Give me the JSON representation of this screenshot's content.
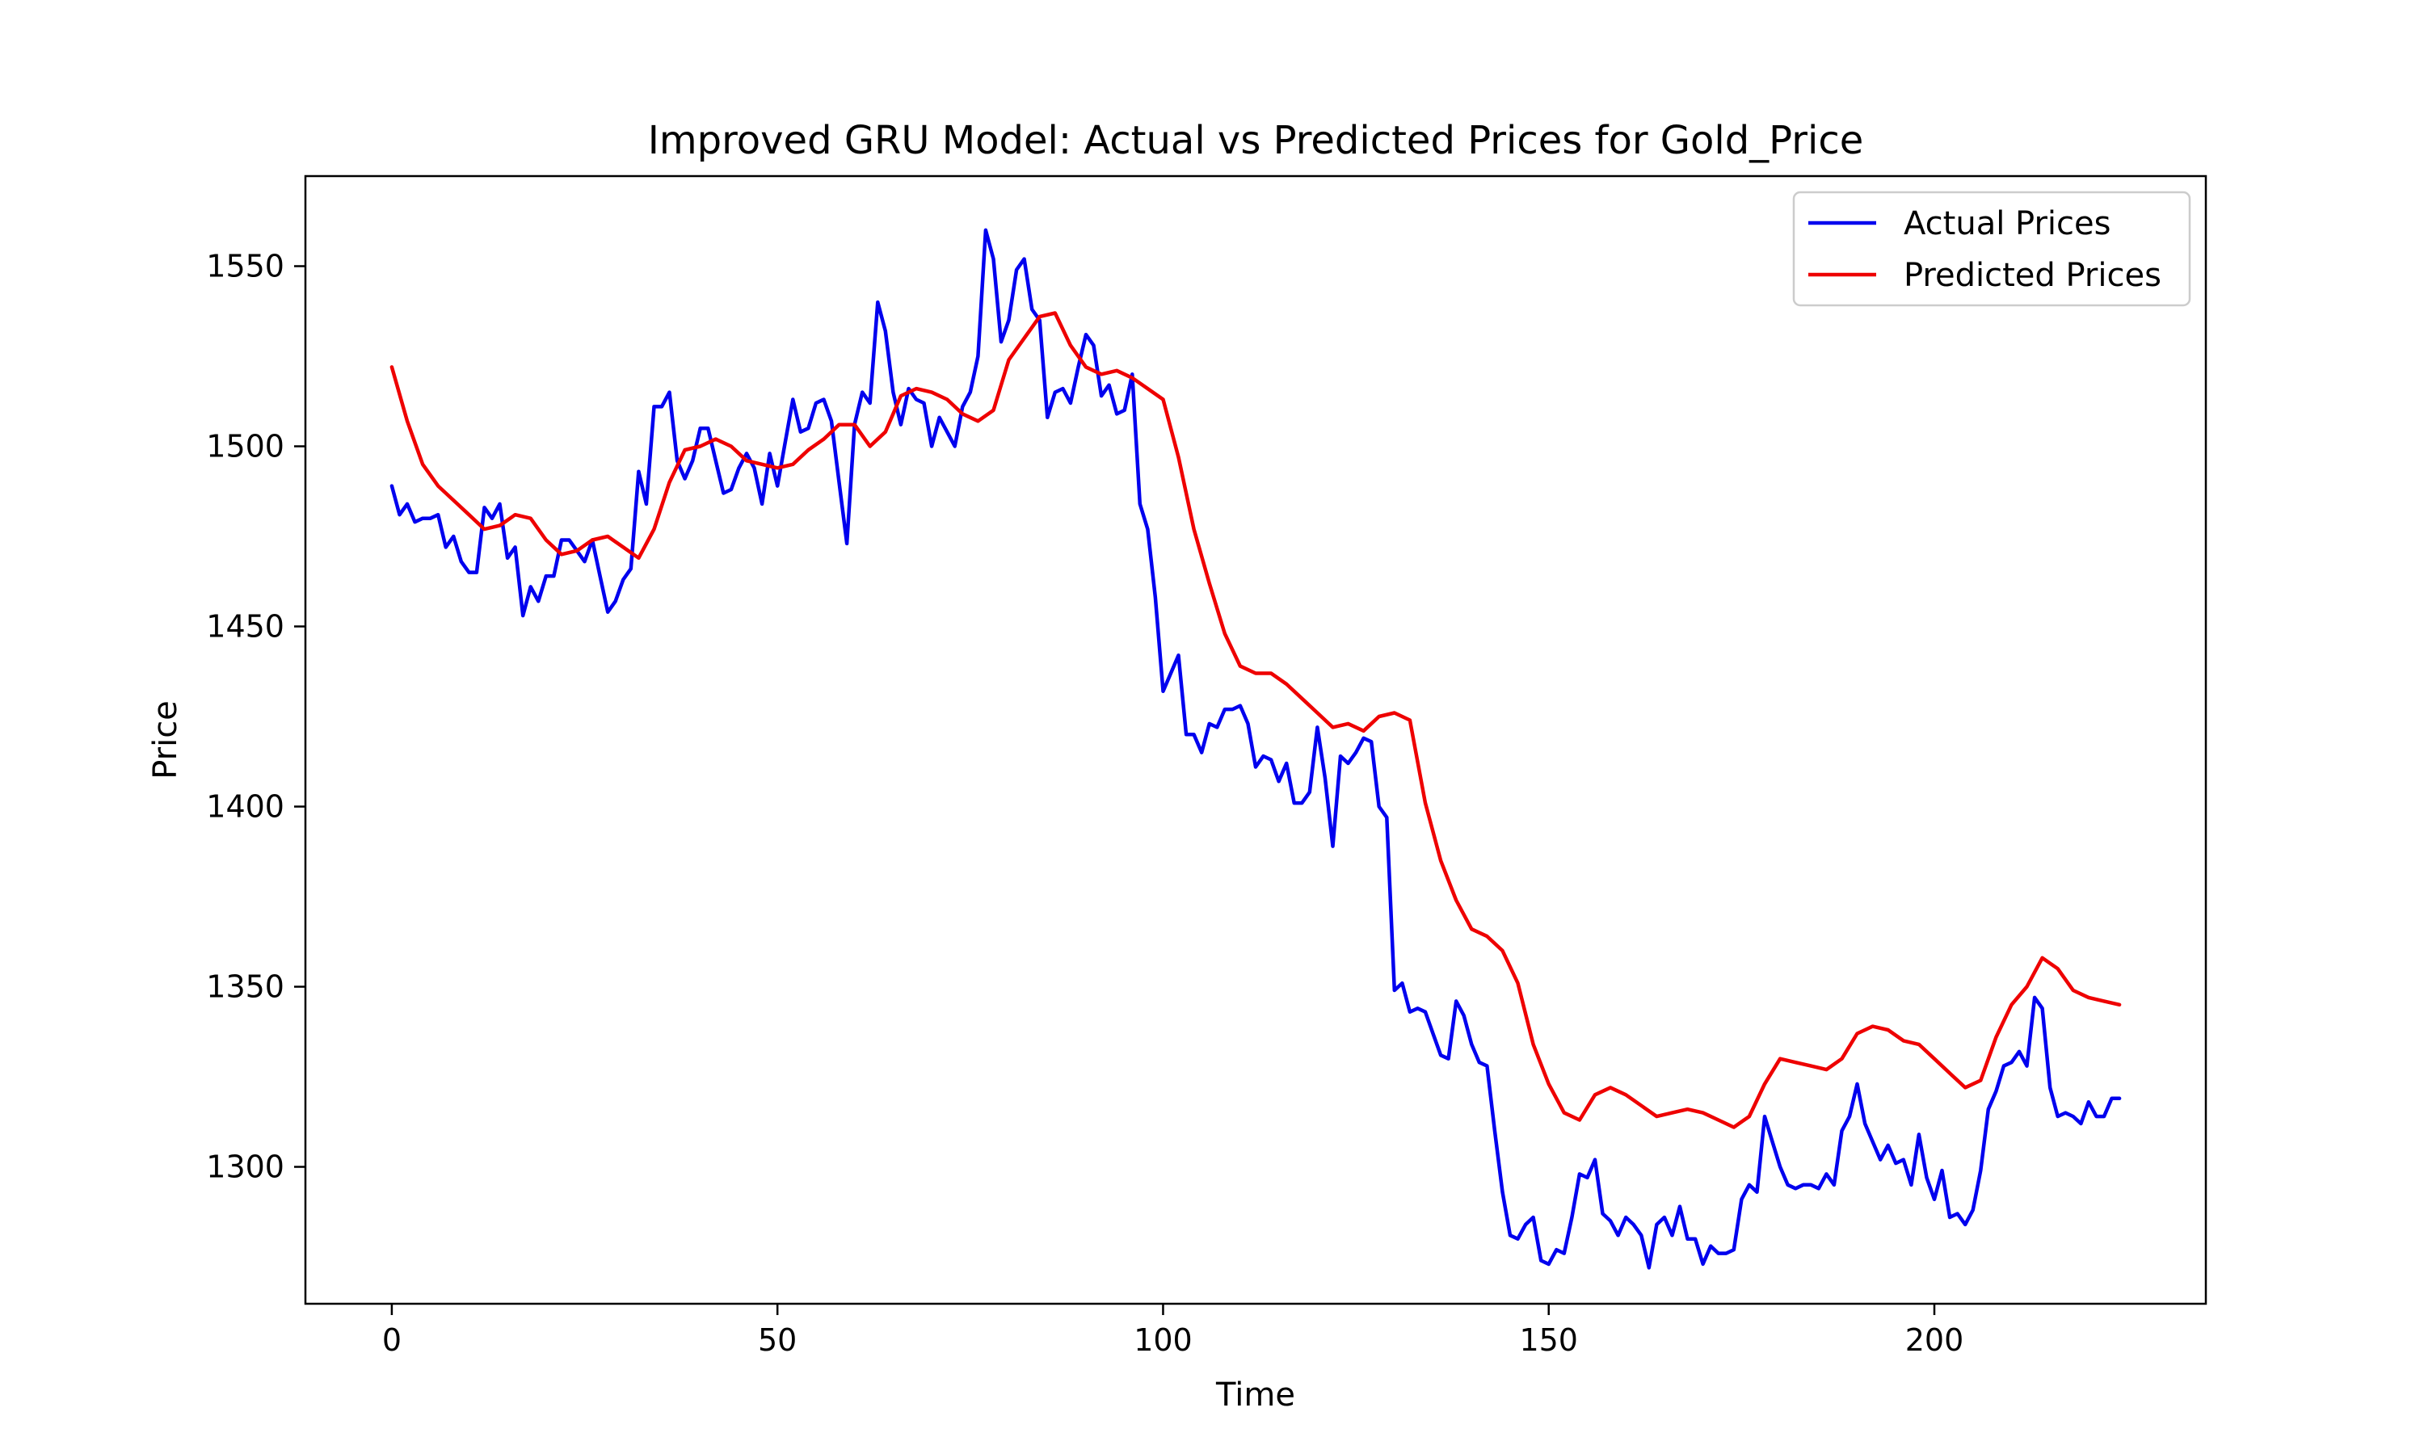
{
  "chart_data": {
    "type": "line",
    "title": "Improved GRU Model: Actual vs Predicted Prices for Gold_Price",
    "xlabel": "Time",
    "ylabel": "Price",
    "xlim": [
      -11.2,
      235.2
    ],
    "ylim": [
      1262,
      1575
    ],
    "xticks": [
      0,
      50,
      100,
      150,
      200
    ],
    "yticks": [
      1300,
      1350,
      1400,
      1450,
      1500,
      1550
    ],
    "grid": false,
    "legend_position": "top-right",
    "series": [
      {
        "name": "Actual Prices",
        "color": "#0000ee",
        "x": [
          0,
          1,
          2,
          3,
          4,
          5,
          6,
          7,
          8,
          9,
          10,
          11,
          12,
          13,
          14,
          15,
          16,
          17,
          18,
          19,
          20,
          21,
          22,
          23,
          24,
          25,
          26,
          27,
          28,
          29,
          30,
          31,
          32,
          33,
          34,
          35,
          36,
          37,
          38,
          39,
          40,
          41,
          42,
          43,
          44,
          45,
          46,
          47,
          48,
          49,
          50,
          51,
          52,
          53,
          54,
          55,
          56,
          57,
          58,
          59,
          60,
          61,
          62,
          63,
          64,
          65,
          66,
          67,
          68,
          69,
          70,
          71,
          72,
          73,
          74,
          75,
          76,
          77,
          78,
          79,
          80,
          81,
          82,
          83,
          84,
          85,
          86,
          87,
          88,
          89,
          90,
          91,
          92,
          93,
          94,
          95,
          96,
          97,
          98,
          99,
          100,
          101,
          102,
          103,
          104,
          105,
          106,
          107,
          108,
          109,
          110,
          111,
          112,
          113,
          114,
          115,
          116,
          117,
          118,
          119,
          120,
          121,
          122,
          123,
          124,
          125,
          126,
          127,
          128,
          129,
          130,
          131,
          132,
          133,
          134,
          135,
          136,
          137,
          138,
          139,
          140,
          141,
          142,
          143,
          144,
          145,
          146,
          147,
          148,
          149,
          150,
          151,
          152,
          153,
          154,
          155,
          156,
          157,
          158,
          159,
          160,
          161,
          162,
          163,
          164,
          165,
          166,
          167,
          168,
          169,
          170,
          171,
          172,
          173,
          174,
          175,
          176,
          177,
          178,
          179,
          180,
          181,
          182,
          183,
          184,
          185,
          186,
          187,
          188,
          189,
          190,
          191,
          192,
          193,
          194,
          195,
          196,
          197,
          198,
          199,
          200,
          201,
          202,
          203,
          204,
          205,
          206,
          207,
          208,
          209,
          210,
          211,
          212,
          213,
          214,
          215,
          216,
          217,
          218,
          219,
          220,
          221,
          222,
          223,
          224
        ],
        "values": [
          1489,
          1481,
          1484,
          1479,
          1480,
          1480,
          1481,
          1472,
          1475,
          1468,
          1465,
          1465,
          1483,
          1480,
          1484,
          1469,
          1472,
          1453,
          1461,
          1457,
          1464,
          1464,
          1474,
          1474,
          1471,
          1468,
          1474,
          1464,
          1454,
          1457,
          1463,
          1466,
          1493,
          1484,
          1511,
          1511,
          1515,
          1496,
          1491,
          1496,
          1505,
          1505,
          1496,
          1487,
          1488,
          1494,
          1498,
          1494,
          1484,
          1498,
          1489,
          1501,
          1513,
          1504,
          1505,
          1512,
          1513,
          1507,
          1490,
          1473,
          1506,
          1515,
          1512,
          1540,
          1532,
          1515,
          1506,
          1516,
          1513,
          1512,
          1500,
          1508,
          1504,
          1500,
          1511,
          1515,
          1525,
          1560,
          1552,
          1529,
          1535,
          1549,
          1552,
          1538,
          1535,
          1508,
          1515,
          1516,
          1512,
          1522,
          1531,
          1528,
          1514,
          1517,
          1509,
          1510,
          1520,
          1484,
          1477,
          1458,
          1432,
          1437,
          1442,
          1420,
          1420,
          1415,
          1423,
          1422,
          1427,
          1427,
          1428,
          1423,
          1411,
          1414,
          1413,
          1407,
          1412,
          1401,
          1401,
          1404,
          1422,
          1408,
          1389,
          1414,
          1412,
          1415,
          1419,
          1418,
          1400,
          1397,
          1349,
          1351,
          1343,
          1344,
          1343,
          1337,
          1331,
          1330,
          1346,
          1342,
          1334,
          1329,
          1328,
          1310,
          1293,
          1281,
          1280,
          1284,
          1286,
          1274,
          1273,
          1277,
          1276,
          1286,
          1298,
          1297,
          1302,
          1287,
          1285,
          1281,
          1286,
          1284,
          1281,
          1272,
          1284,
          1286,
          1281,
          1289,
          1280,
          1280,
          1273,
          1278,
          1276,
          1276,
          1277,
          1291,
          1295,
          1293,
          1314,
          1307,
          1300,
          1295,
          1294,
          1295,
          1295,
          1294,
          1298,
          1295,
          1310,
          1314,
          1323,
          1312,
          1307,
          1302,
          1306,
          1301,
          1302,
          1295,
          1309,
          1297,
          1291,
          1299,
          1286,
          1287,
          1284,
          1288,
          1299,
          1316,
          1321,
          1328,
          1329,
          1332,
          1328,
          1347,
          1344,
          1322,
          1314,
          1315,
          1314,
          1312,
          1318,
          1314,
          1314,
          1319,
          1319
        ]
      },
      {
        "name": "Predicted Prices",
        "color": "#ee0000",
        "x": [
          0,
          2,
          4,
          6,
          8,
          10,
          12,
          14,
          16,
          18,
          20,
          22,
          24,
          26,
          28,
          30,
          32,
          34,
          36,
          38,
          40,
          42,
          44,
          46,
          48,
          50,
          52,
          54,
          56,
          58,
          60,
          62,
          64,
          66,
          68,
          70,
          72,
          74,
          76,
          78,
          80,
          82,
          84,
          86,
          88,
          90,
          92,
          94,
          96,
          98,
          100,
          102,
          104,
          106,
          108,
          110,
          112,
          114,
          116,
          118,
          120,
          122,
          124,
          126,
          128,
          130,
          132,
          134,
          136,
          138,
          140,
          142,
          144,
          146,
          148,
          150,
          152,
          154,
          156,
          158,
          160,
          162,
          164,
          166,
          168,
          170,
          172,
          174,
          176,
          178,
          180,
          182,
          184,
          186,
          188,
          190,
          192,
          194,
          196,
          198,
          200,
          202,
          204,
          206,
          208,
          210,
          212,
          214,
          216,
          218,
          220,
          222,
          224
        ],
        "values": [
          1522,
          1507,
          1495,
          1489,
          1485,
          1481,
          1477,
          1478,
          1481,
          1480,
          1474,
          1470,
          1471,
          1474,
          1475,
          1472,
          1469,
          1477,
          1490,
          1499,
          1500,
          1502,
          1500,
          1496,
          1495,
          1494,
          1495,
          1499,
          1502,
          1506,
          1506,
          1500,
          1504,
          1514,
          1516,
          1515,
          1513,
          1509,
          1507,
          1510,
          1524,
          1530,
          1536,
          1537,
          1528,
          1522,
          1520,
          1521,
          1519,
          1516,
          1513,
          1497,
          1477,
          1462,
          1448,
          1439,
          1437,
          1437,
          1434,
          1430,
          1426,
          1422,
          1423,
          1421,
          1425,
          1426,
          1424,
          1401,
          1385,
          1374,
          1366,
          1364,
          1360,
          1351,
          1334,
          1323,
          1315,
          1313,
          1320,
          1322,
          1320,
          1317,
          1314,
          1315,
          1316,
          1315,
          1313,
          1311,
          1314,
          1323,
          1330,
          1329,
          1328,
          1327,
          1330,
          1337,
          1339,
          1338,
          1335,
          1334,
          1330,
          1326,
          1322,
          1324,
          1336,
          1345,
          1350,
          1358,
          1355,
          1349,
          1347,
          1346,
          1345
        ]
      }
    ]
  }
}
